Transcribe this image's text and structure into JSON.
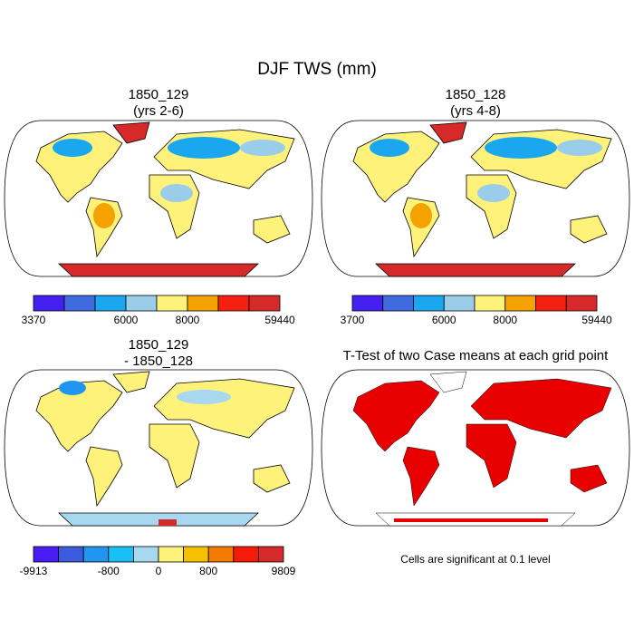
{
  "title": "DJF TWS (mm)",
  "panels": [
    {
      "title": "1850_129",
      "subtitle": "(yrs 2-6)",
      "colorbar": {
        "colors": [
          "#4520f0",
          "#3e6ce0",
          "#19a8f0",
          "#99cdea",
          "#fff27a",
          "#f5a100",
          "#f51f0f",
          "#d62a2a"
        ],
        "labels": [
          3370,
          null,
          null,
          6000,
          null,
          8000,
          null,
          null,
          59440
        ]
      }
    },
    {
      "title": "1850_128",
      "subtitle": "(yrs 4-8)",
      "colorbar": {
        "colors": [
          "#4520f0",
          "#3e6ce0",
          "#19a8f0",
          "#99cdea",
          "#fff27a",
          "#f5a100",
          "#f51f0f",
          "#d62a2a"
        ],
        "labels": [
          3700,
          null,
          null,
          6000,
          null,
          8000,
          null,
          null,
          59440
        ]
      }
    },
    {
      "title": "1850_129",
      "subtitle": "- 1850_128",
      "colorbar": {
        "colors": [
          "#4a1cf5",
          "#3a5bdc",
          "#2196f0",
          "#19c0f5",
          "#a8d8f0",
          "#fff27a",
          "#f5c000",
          "#f57a00",
          "#f51a0a",
          "#d62a2a"
        ],
        "labels": [
          -9913,
          null,
          null,
          -800,
          null,
          0,
          null,
          800,
          null,
          null,
          9809
        ]
      }
    },
    {
      "title": "T-Test of two Case means at each grid point",
      "note": "Cells are significant at 0.1 level"
    }
  ]
}
